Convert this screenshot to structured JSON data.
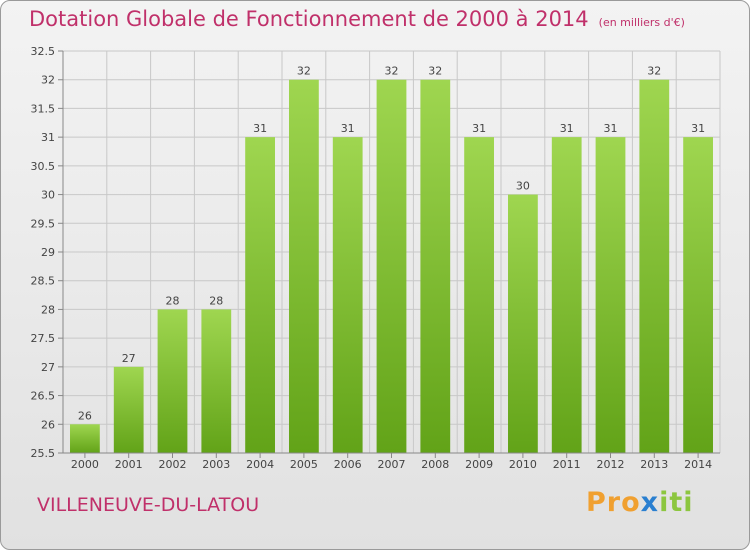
{
  "header": {
    "title": "Dotation Globale de Fonctionnement de 2000 à 2014",
    "unit": "(en milliers d'€)"
  },
  "footer": {
    "city": "VILLENEUVE-DU-LATOU",
    "logo": "Proxiti",
    "logo_parts": [
      "Pro",
      "x",
      "iti"
    ]
  },
  "chart_data": {
    "type": "bar",
    "title": "Dotation Globale de Fonctionnement de 2000 à 2014",
    "categories": [
      "2000",
      "2001",
      "2002",
      "2003",
      "2004",
      "2005",
      "2006",
      "2007",
      "2008",
      "2009",
      "2010",
      "2011",
      "2012",
      "2013",
      "2014"
    ],
    "values": [
      26,
      27,
      28,
      28,
      31,
      32,
      31,
      32,
      32,
      31,
      30,
      31,
      31,
      32,
      31
    ],
    "value_labels": [
      "26",
      "27",
      "28",
      "28",
      "31",
      "32",
      "31",
      "32",
      "32",
      "31",
      "30",
      "31",
      "31",
      "32",
      "31"
    ],
    "ylim": [
      25.5,
      32.5
    ],
    "yticks": [
      25.5,
      26,
      26.5,
      27,
      27.5,
      28,
      28.5,
      29,
      29.5,
      30,
      30.5,
      31,
      31.5,
      32,
      32.5
    ],
    "ytick_labels": [
      "25.5",
      "26",
      "26.5",
      "27",
      "27.5",
      "28",
      "28.5",
      "29",
      "29.5",
      "30",
      "30.5",
      "31",
      "31.5",
      "32",
      "32.5"
    ],
    "grid": true,
    "bar_color_top": "#9fd650",
    "bar_color_bottom": "#62a318",
    "title_color": "#c0306a"
  }
}
